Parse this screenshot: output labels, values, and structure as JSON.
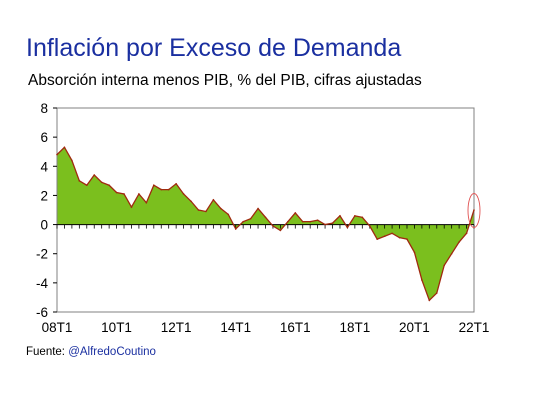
{
  "header": {
    "title": "Inflación por Exceso de Demanda",
    "subtitle": "Absorción interna menos PIB, % del PIB, cifras ajustadas"
  },
  "footer": {
    "source_label": "Fuente: ",
    "source_handle": "@AlfredoCoutino"
  },
  "colors": {
    "title": "#1a2fa0",
    "fill": "#7bbf1e",
    "line": "#a0290f",
    "highlight": "#e05050"
  },
  "chart_data": {
    "type": "area",
    "title": "Inflación por Exceso de Demanda",
    "subtitle": "Absorción interna menos PIB, % del PIB, cifras ajustadas",
    "xlabel": "",
    "ylabel": "",
    "ylim": [
      -6,
      8
    ],
    "yticks": [
      -6,
      -4,
      -2,
      0,
      2,
      4,
      6,
      8
    ],
    "xtick_labels": [
      "08T1",
      "10T1",
      "12T1",
      "14T1",
      "16T1",
      "18T1",
      "20T1",
      "22T1"
    ],
    "grid": false,
    "highlight_last_point": true,
    "series": [
      {
        "x": [
          "08T1",
          "08T2",
          "08T3",
          "08T4",
          "09T1",
          "09T2",
          "09T3",
          "09T4",
          "10T1",
          "10T2",
          "10T3",
          "10T4",
          "11T1",
          "11T2",
          "11T3",
          "11T4",
          "12T1",
          "12T2",
          "12T3",
          "12T4",
          "13T1",
          "13T2",
          "13T3",
          "13T4",
          "14T1",
          "14T2",
          "14T3",
          "14T4",
          "15T1",
          "15T2",
          "15T3",
          "15T4",
          "16T1",
          "16T2",
          "16T3",
          "16T4",
          "17T1",
          "17T2",
          "17T3",
          "17T4",
          "18T1",
          "18T2",
          "18T3",
          "18T4",
          "19T1",
          "19T2",
          "19T3",
          "19T4",
          "20T1",
          "20T2",
          "20T3",
          "20T4",
          "21T1",
          "21T2",
          "21T3",
          "21T4",
          "22T1"
        ],
        "values": [
          4.8,
          5.3,
          4.4,
          3.0,
          2.7,
          3.4,
          2.9,
          2.7,
          2.2,
          2.1,
          1.2,
          2.1,
          1.5,
          2.7,
          2.4,
          2.4,
          2.8,
          2.1,
          1.6,
          1.0,
          0.9,
          1.7,
          1.1,
          0.7,
          -0.3,
          0.2,
          0.4,
          1.1,
          0.5,
          -0.1,
          -0.4,
          0.2,
          0.8,
          0.2,
          0.2,
          0.3,
          0.0,
          0.1,
          0.6,
          -0.2,
          0.6,
          0.5,
          -0.1,
          -1.0,
          -0.8,
          -0.6,
          -0.9,
          -1.0,
          -1.9,
          -3.8,
          -5.2,
          -4.7,
          -2.8,
          -2.0,
          -1.2,
          -0.6,
          1.0
        ]
      }
    ]
  }
}
